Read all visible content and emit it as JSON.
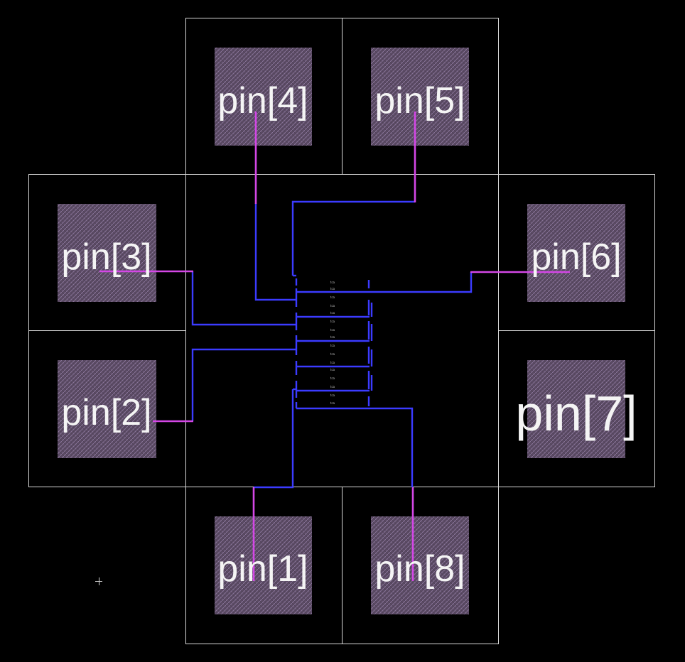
{
  "pads": [
    {
      "id": "pin-1",
      "label": "pin[1]"
    },
    {
      "id": "pin-2",
      "label": "pin[2]"
    },
    {
      "id": "pin-3",
      "label": "pin[3]"
    },
    {
      "id": "pin-4",
      "label": "pin[4]"
    },
    {
      "id": "pin-5",
      "label": "pin[5]"
    },
    {
      "id": "pin-6",
      "label": "pin[6]"
    },
    {
      "id": "pin-7",
      "label": "pin[7]"
    },
    {
      "id": "pin-8",
      "label": "pin[8]"
    }
  ],
  "colors": {
    "background": "#000000",
    "cell_outline": "#d8d8d8",
    "pad_fill": "#5a4a63",
    "pad_hatch": "#8f7aa0",
    "route_layer_1": "#3b3bff",
    "route_layer_2": "#d447e6",
    "label": "#f4f4f4"
  },
  "center_block": {
    "cell_labels": [
      "tca",
      "tca",
      "tca",
      "tca",
      "tca",
      "tca",
      "tca",
      "tca",
      "tca",
      "tca",
      "tca",
      "tca",
      "tca",
      "tca",
      "tca",
      "tca"
    ]
  }
}
